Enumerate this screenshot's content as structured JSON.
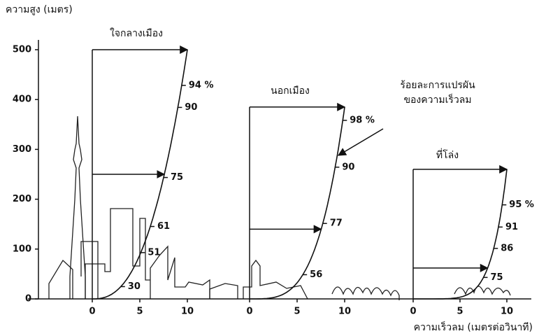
{
  "y_axis": {
    "label": "ความสูง (เมตร)",
    "ylim": [
      0,
      500
    ],
    "ticks": [
      0,
      100,
      200,
      300,
      400,
      500
    ]
  },
  "x_axis": {
    "label": "ความเร็วลม (เมตรต่อวินาที)"
  },
  "panels": [
    {
      "title": "ใจกลางเมือง",
      "xlim": [
        0,
        10
      ],
      "xticks": [
        0,
        5,
        10
      ],
      "percent_labels": [
        {
          "value": 94,
          "label": "94 %"
        },
        90,
        75,
        61,
        51,
        30
      ]
    },
    {
      "title": "นอกเมือง",
      "xlim": [
        0,
        10
      ],
      "xticks": [
        0,
        5,
        10
      ],
      "percent_labels": [
        {
          "value": 98,
          "label": "98 %"
        },
        90,
        77,
        56
      ]
    },
    {
      "title": "ที่โล่ง",
      "xlim": [
        0,
        10
      ],
      "xticks": [
        0,
        5,
        10
      ],
      "percent_labels": [
        {
          "value": 95,
          "label": "95 %"
        },
        91,
        86,
        75
      ]
    }
  ],
  "annotation": {
    "lines": [
      "ร้อยละการแปรผัน",
      "ของความเร็วลม"
    ]
  }
}
